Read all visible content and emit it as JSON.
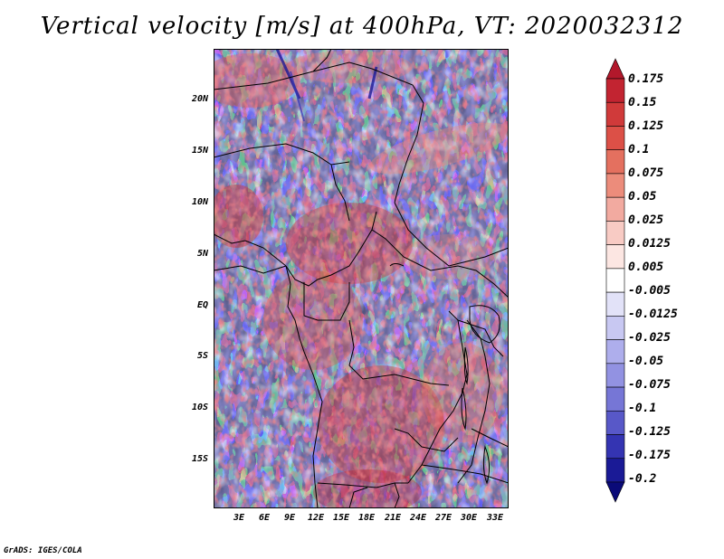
{
  "title": "Vertical velocity [m/s] at 400hPa, VT: 2020032312",
  "map": {
    "lat_labels": [
      "20N",
      "15N",
      "10N",
      "5N",
      "EQ",
      "5S",
      "10S",
      "15S"
    ],
    "lon_labels": [
      "3E",
      "6E",
      "9E",
      "12E",
      "15E",
      "18E",
      "21E",
      "24E",
      "27E",
      "30E",
      "33E"
    ]
  },
  "colorbar": {
    "labels": [
      "0.175",
      "0.15",
      "0.125",
      "0.1",
      "0.075",
      "0.05",
      "0.025",
      "0.0125",
      "0.005",
      "-0.005",
      "-0.0125",
      "-0.025",
      "-0.05",
      "-0.075",
      "-0.1",
      "-0.125",
      "-0.175",
      "-0.2"
    ],
    "colors": [
      "#b2182b",
      "#c22431",
      "#d03a3a",
      "#dc5047",
      "#e4705f",
      "#ec8c7b",
      "#f2aaa0",
      "#f8cbc4",
      "#fce6e2",
      "#ffffff",
      "#e2e2f8",
      "#c8c8f2",
      "#aeaeec",
      "#9292e2",
      "#7676d6",
      "#5858c8",
      "#3434b2",
      "#1a1a96",
      "#0a0a78"
    ]
  },
  "credit": "GrADS: IGES/COLA"
}
